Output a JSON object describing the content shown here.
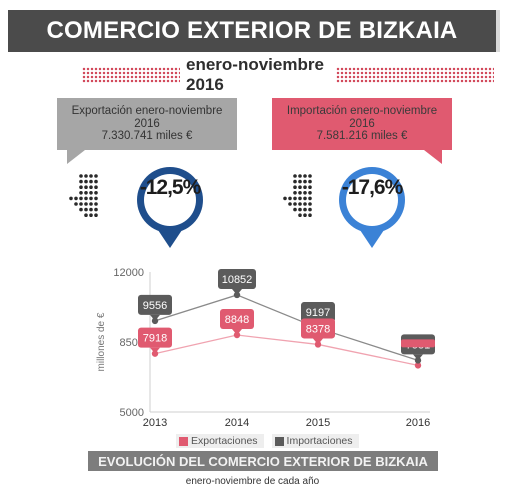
{
  "header": {
    "title": "COMERCIO EXTERIOR DE BIZKAIA",
    "period": "enero-noviembre 2016"
  },
  "export_box": {
    "line1": "Exportación enero-noviembre",
    "line2": "2016",
    "line3": "7.330.741 miles €",
    "change": "-12,5%"
  },
  "import_box": {
    "line1": "Importación enero-noviembre",
    "line2": "2016",
    "line3": "7.581.216 miles €",
    "change": "-17,6%"
  },
  "colors": {
    "export": "#e05a70",
    "import": "#5b5b5b",
    "export_circle": "#1f4e8c",
    "import_circle": "#3b82d6",
    "title_bg": "#4b4b4b"
  },
  "icons": [
    "down-arrow-dots-icon",
    "percent-circle-icon"
  ],
  "chart_data": {
    "type": "line",
    "title": "EVOLUCIÓN DEL COMERCIO EXTERIOR DE BIZKAIA",
    "subtitle": "enero-noviembre de cada año",
    "ylabel": "millones de €",
    "xlabel": "",
    "x": [
      "2013",
      "2014",
      "2015",
      "2016"
    ],
    "ylim": [
      5000,
      12000
    ],
    "yticks": [
      "5000",
      "8500",
      "12000"
    ],
    "series": [
      {
        "name": "Exportaciones",
        "values": [
          7918,
          8848,
          8378,
          7331
        ],
        "labels": [
          "7918",
          "8848",
          "8378",
          ""
        ]
      },
      {
        "name": "Importaciones",
        "values": [
          9556,
          10852,
          9197,
          7581
        ],
        "labels": [
          "9556",
          "10852",
          "9197",
          "7581"
        ]
      }
    ],
    "legend": "bottom",
    "grid": false
  }
}
